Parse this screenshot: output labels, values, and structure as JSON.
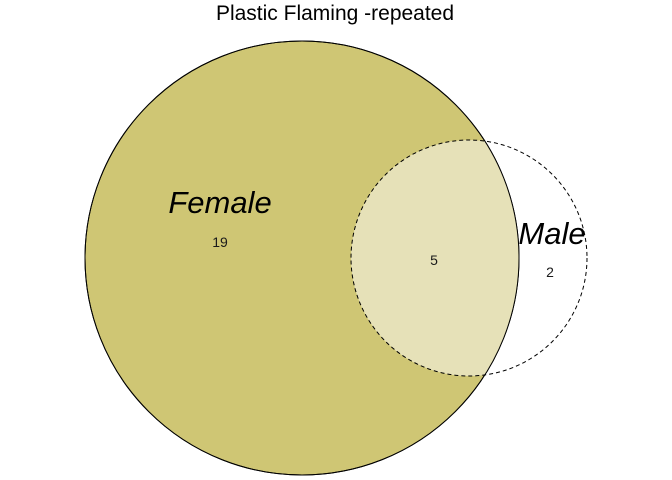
{
  "title": "Plastic Flaming -repeated",
  "colors": {
    "female_fill": "#cfc674",
    "intersection_fill": "#e6e1b8",
    "male_fill": "#ffffff",
    "stroke": "#000000"
  },
  "sets": {
    "female": {
      "label": "Female",
      "only_count": "19"
    },
    "male": {
      "label": "Male",
      "only_count": "2"
    },
    "both_count": "5"
  }
}
